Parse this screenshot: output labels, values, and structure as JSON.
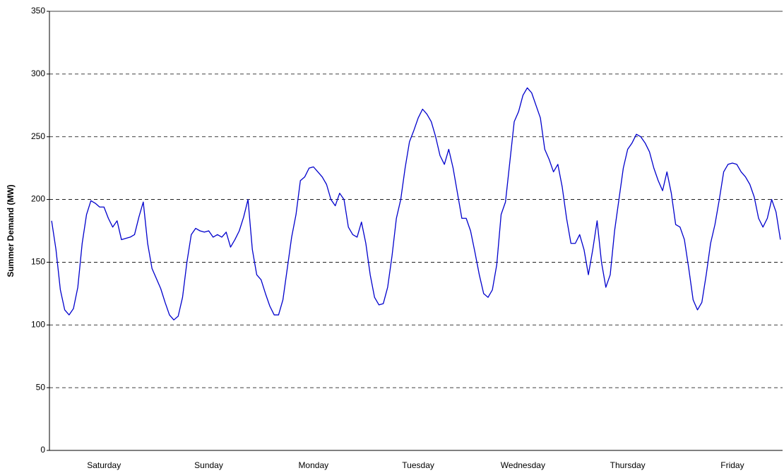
{
  "chart_data": {
    "type": "line",
    "y_label": "Summer Demand (MW)",
    "categories": [
      null,
      null,
      null,
      null,
      null,
      null,
      null,
      null,
      null,
      null,
      null,
      null,
      "Saturday",
      null,
      null,
      null,
      null,
      null,
      null,
      null,
      null,
      null,
      null,
      null,
      null,
      null,
      null,
      null,
      null,
      null,
      null,
      null,
      null,
      null,
      null,
      null,
      "Sunday",
      null,
      null,
      null,
      null,
      null,
      null,
      null,
      null,
      null,
      null,
      null,
      null,
      null,
      null,
      null,
      null,
      null,
      null,
      null,
      null,
      null,
      null,
      null,
      "Monday",
      null,
      null,
      null,
      null,
      null,
      null,
      null,
      null,
      null,
      null,
      null,
      null,
      null,
      null,
      null,
      null,
      null,
      null,
      null,
      null,
      null,
      null,
      null,
      "Tuesday",
      null,
      null,
      null,
      null,
      null,
      null,
      null,
      null,
      null,
      null,
      null,
      null,
      null,
      null,
      null,
      null,
      null,
      null,
      null,
      null,
      null,
      null,
      null,
      "Wednesday",
      null,
      null,
      null,
      null,
      null,
      null,
      null,
      null,
      null,
      null,
      null,
      null,
      null,
      null,
      null,
      null,
      null,
      null,
      null,
      null,
      null,
      null,
      null,
      "Thursday",
      null,
      null,
      null,
      null,
      null,
      null,
      null,
      null,
      null,
      null,
      null,
      null,
      null,
      null,
      null,
      null,
      null,
      null,
      null,
      null,
      null,
      null,
      null,
      "Friday",
      null,
      null,
      null,
      null,
      null,
      null,
      null,
      null,
      null,
      null,
      null
    ],
    "values": [
      183,
      160,
      128,
      112,
      108,
      113,
      130,
      165,
      188,
      199,
      197,
      194,
      194,
      185,
      178,
      183,
      168,
      169,
      170,
      172,
      186,
      198,
      165,
      145,
      137,
      129,
      118,
      108,
      104,
      107,
      122,
      150,
      172,
      177,
      175,
      174,
      175,
      170,
      172,
      170,
      174,
      162,
      168,
      175,
      186,
      200,
      160,
      140,
      136,
      125,
      115,
      108,
      108,
      120,
      145,
      170,
      188,
      215,
      218,
      225,
      226,
      222,
      218,
      212,
      200,
      195,
      205,
      200,
      178,
      172,
      170,
      182,
      165,
      140,
      122,
      116,
      117,
      130,
      155,
      185,
      200,
      225,
      246,
      255,
      265,
      272,
      268,
      262,
      250,
      235,
      228,
      240,
      225,
      205,
      185,
      185,
      175,
      158,
      140,
      125,
      122,
      128,
      148,
      188,
      198,
      230,
      262,
      270,
      283,
      289,
      285,
      275,
      265,
      240,
      232,
      222,
      228,
      210,
      185,
      165,
      165,
      172,
      160,
      140,
      160,
      183,
      150,
      130,
      140,
      175,
      200,
      225,
      240,
      245,
      252,
      250,
      245,
      238,
      225,
      215,
      207,
      222,
      205,
      180,
      178,
      168,
      145,
      120,
      112,
      118,
      140,
      165,
      180,
      200,
      222,
      228,
      229,
      228,
      222,
      218,
      212,
      202,
      185,
      178,
      185,
      200,
      190,
      168
    ],
    "color": "#0000cc",
    "ylim": [
      0,
      350
    ],
    "yticks": [
      0,
      50,
      100,
      150,
      200,
      250,
      300,
      350
    ],
    "grid": true
  }
}
